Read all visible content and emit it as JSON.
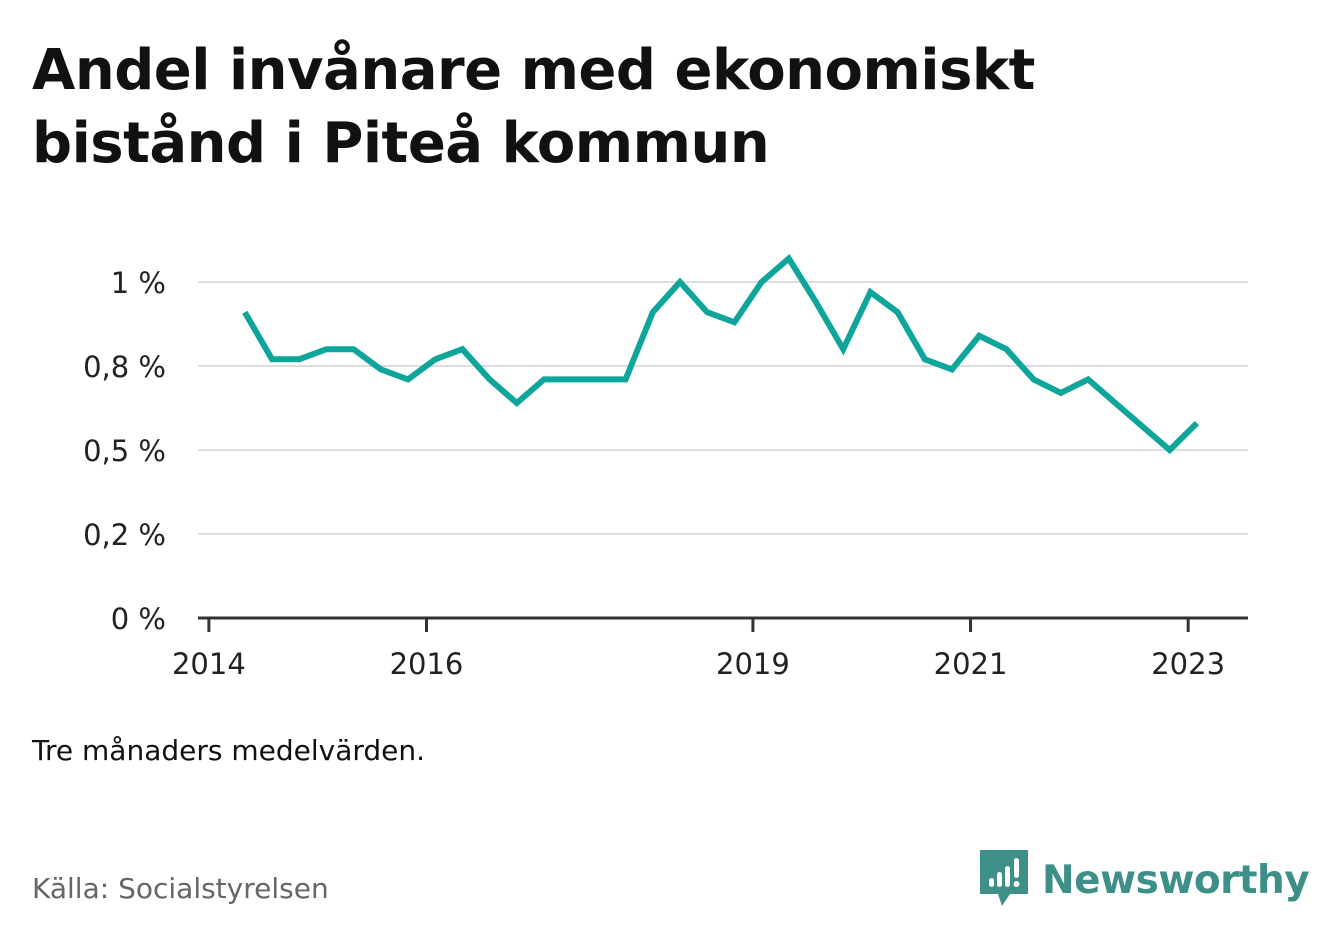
{
  "title": "Andel invånare med ekonomiskt bistånd i Piteå kommun",
  "note": "Tre månaders medelvärden.",
  "source": "Källa: Socialstyrelsen",
  "brand": {
    "name": "Newsworthy",
    "icon": "newsworthy-logo-icon",
    "color": "#3d8f88"
  },
  "colors": {
    "line": "#0ea59b",
    "grid": "#dddddd",
    "axis": "#333333"
  },
  "chart_data": {
    "type": "line",
    "title": "Andel invånare med ekonomiskt bistånd i Piteå kommun",
    "xlabel": "",
    "ylabel": "",
    "y_ticks": [
      {
        "value": 0,
        "label": "0 %"
      },
      {
        "value": 0.25,
        "label": "0,2 %"
      },
      {
        "value": 0.5,
        "label": "0,5 %"
      },
      {
        "value": 0.75,
        "label": "0,8 %"
      },
      {
        "value": 1.0,
        "label": "1 %"
      }
    ],
    "x_ticks": [
      {
        "value": 2014.0,
        "label": "2014"
      },
      {
        "value": 2016.0,
        "label": "2016"
      },
      {
        "value": 2019.0,
        "label": "2019"
      },
      {
        "value": 2021.0,
        "label": "2021"
      },
      {
        "value": 2023.0,
        "label": "2023"
      }
    ],
    "xlim": [
      2013.9,
      2023.55
    ],
    "ylim": [
      0,
      1.0
    ],
    "grid": true,
    "x": [
      2014.33,
      2014.58,
      2014.83,
      2015.08,
      2015.33,
      2015.58,
      2015.83,
      2016.08,
      2016.33,
      2016.58,
      2016.83,
      2017.08,
      2017.33,
      2017.58,
      2017.83,
      2018.08,
      2018.33,
      2018.58,
      2018.83,
      2019.08,
      2019.33,
      2019.58,
      2019.83,
      2020.08,
      2020.33,
      2020.58,
      2020.83,
      2021.08,
      2021.33,
      2021.58,
      2021.83,
      2022.08,
      2022.33,
      2022.58,
      2022.83,
      2023.08
    ],
    "series": [
      {
        "values": [
          0.91,
          0.77,
          0.77,
          0.8,
          0.8,
          0.74,
          0.71,
          0.77,
          0.8,
          0.71,
          0.64,
          0.71,
          0.71,
          0.71,
          0.71,
          0.91,
          1.0,
          0.91,
          0.88,
          1.0,
          1.07,
          0.94,
          0.8,
          0.97,
          0.91,
          0.77,
          0.74,
          0.84,
          0.8,
          0.71,
          0.67,
          0.71,
          0.64,
          0.57,
          0.5,
          0.58
        ],
        "color": "#0ea59b"
      }
    ]
  }
}
